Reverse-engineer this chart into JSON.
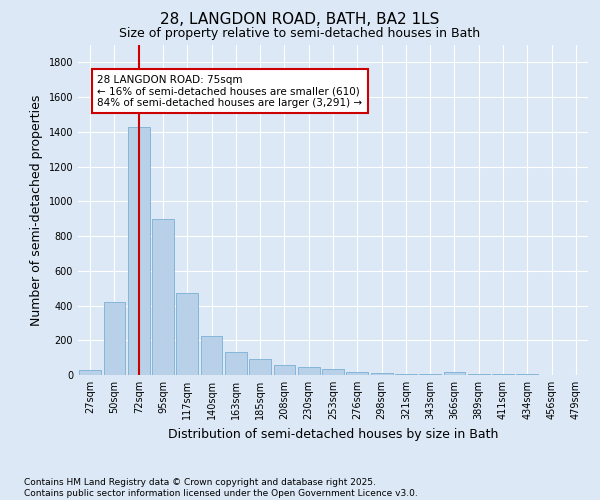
{
  "title": "28, LANGDON ROAD, BATH, BA2 1LS",
  "subtitle": "Size of property relative to semi-detached houses in Bath",
  "xlabel": "Distribution of semi-detached houses by size in Bath",
  "ylabel": "Number of semi-detached properties",
  "categories": [
    "27sqm",
    "50sqm",
    "72sqm",
    "95sqm",
    "117sqm",
    "140sqm",
    "163sqm",
    "185sqm",
    "208sqm",
    "230sqm",
    "253sqm",
    "276sqm",
    "298sqm",
    "321sqm",
    "343sqm",
    "366sqm",
    "389sqm",
    "411sqm",
    "434sqm",
    "456sqm",
    "479sqm"
  ],
  "values": [
    30,
    420,
    1430,
    900,
    470,
    225,
    135,
    95,
    60,
    48,
    35,
    20,
    12,
    8,
    5,
    15,
    5,
    5,
    3,
    2,
    2
  ],
  "bar_color": "#b8d0e8",
  "bar_edge_color": "#7aafd4",
  "vline_color": "#cc0000",
  "annotation_text_line1": "28 LANGDON ROAD: 75sqm",
  "annotation_text_line2": "← 16% of semi-detached houses are smaller (610)",
  "annotation_text_line3": "84% of semi-detached houses are larger (3,291) →",
  "annotation_box_color": "#ffffff",
  "annotation_box_edge": "#cc0000",
  "ylim": [
    0,
    1900
  ],
  "yticks": [
    0,
    200,
    400,
    600,
    800,
    1000,
    1200,
    1400,
    1600,
    1800
  ],
  "background_color": "#dce8f5",
  "grid_color": "#ffffff",
  "footer_line1": "Contains HM Land Registry data © Crown copyright and database right 2025.",
  "footer_line2": "Contains public sector information licensed under the Open Government Licence v3.0.",
  "title_fontsize": 11,
  "subtitle_fontsize": 9,
  "axis_label_fontsize": 9,
  "tick_fontsize": 7,
  "annotation_fontsize": 7.5,
  "footer_fontsize": 6.5
}
